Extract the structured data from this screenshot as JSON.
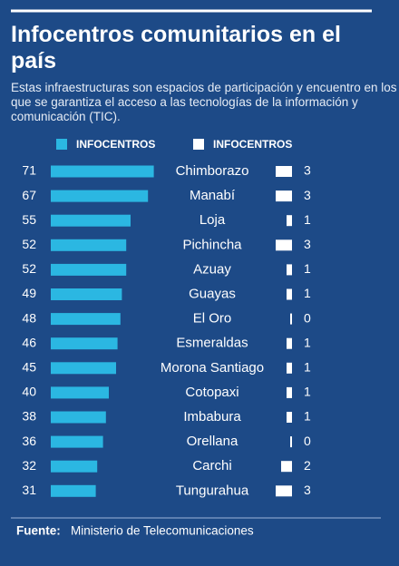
{
  "chart_data": {
    "type": "bar",
    "title": "Infocentros comunitarios en el país",
    "subtitle": "Estas infraestructuras son espacios de participación y encuentro en los que se garantiza el acceso a las tecnologías de la información y comunicación (TIC).",
    "categories": [
      "Chimborazo",
      "Manabí",
      "Loja",
      "Pichincha",
      "Azuay",
      "Guayas",
      "El Oro",
      "Esmeraldas",
      "Morona Santiago",
      "Cotopaxi",
      "Imbabura",
      "Orellana",
      "Carchi",
      "Tungurahua"
    ],
    "series": [
      {
        "name": "INFOCENTROS",
        "color": "#2bb7e2",
        "values": [
          71,
          67,
          55,
          52,
          52,
          49,
          48,
          46,
          45,
          40,
          38,
          36,
          32,
          31
        ]
      },
      {
        "name": "INFOCENTROS",
        "color": "#ffffff",
        "values": [
          3,
          3,
          1,
          3,
          1,
          1,
          0,
          1,
          1,
          1,
          1,
          0,
          2,
          3
        ]
      }
    ],
    "source_label": "Fuente:",
    "source": "Ministerio de Telecomunicaciones"
  }
}
